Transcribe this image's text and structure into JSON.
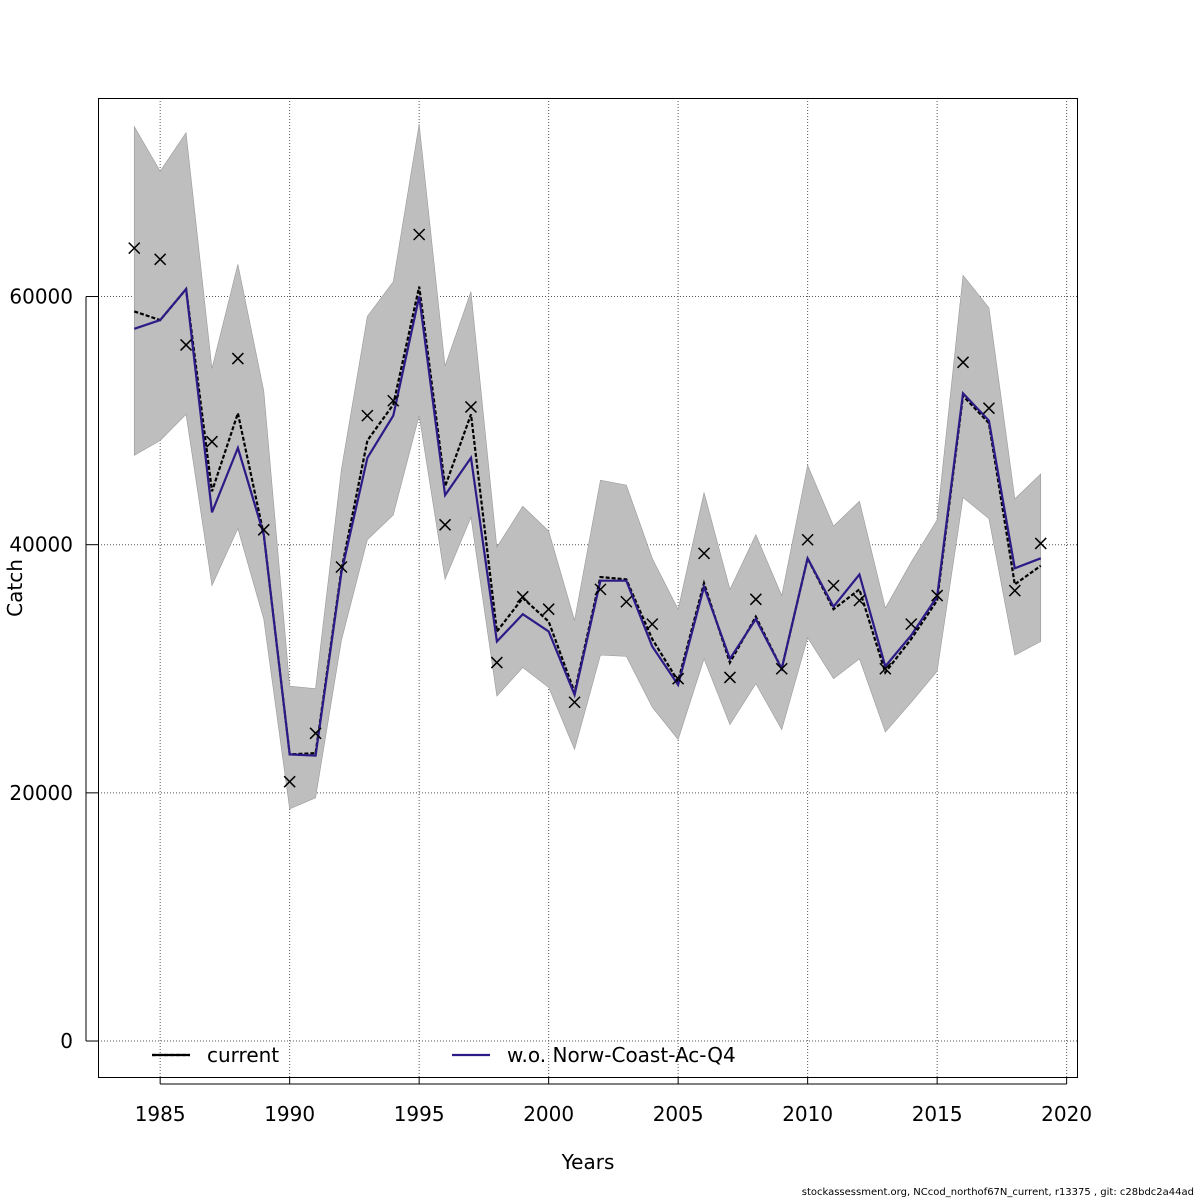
{
  "chart_data": {
    "type": "line",
    "xlabel": "Years",
    "ylabel": "Catch",
    "xlim": [
      1982.6,
      2020.4
    ],
    "ylim": [
      -2900,
      76000
    ],
    "x_ticks": [
      1985,
      1990,
      1995,
      2000,
      2005,
      2010,
      2015,
      2020
    ],
    "y_ticks": [
      0,
      20000,
      40000,
      60000
    ],
    "grid": true,
    "legend_position": "bottom",
    "x": [
      1984,
      1985,
      1986,
      1987,
      1988,
      1989,
      1990,
      1991,
      1992,
      1993,
      1994,
      1995,
      1996,
      1997,
      1998,
      1999,
      2000,
      2001,
      2002,
      2003,
      2004,
      2005,
      2006,
      2007,
      2008,
      2009,
      2010,
      2011,
      2012,
      2013,
      2014,
      2015,
      2016,
      2017,
      2018,
      2019
    ],
    "band": {
      "color": "#bebebe",
      "lower": [
        47200,
        48400,
        50500,
        36700,
        41300,
        34000,
        18700,
        19600,
        32300,
        40400,
        42400,
        50400,
        37200,
        42200,
        27800,
        30100,
        28500,
        23500,
        31100,
        31000,
        26900,
        24300,
        30800,
        25500,
        28800,
        25100,
        32500,
        29200,
        30800,
        24900,
        27300,
        29800,
        43800,
        42100,
        31100,
        32200
      ],
      "upper": [
        73700,
        70100,
        73200,
        54200,
        62600,
        52400,
        28600,
        28400,
        46100,
        58400,
        61200,
        73900,
        54400,
        60400,
        39800,
        43100,
        41100,
        33900,
        45200,
        44800,
        38900,
        34800,
        44200,
        36400,
        40800,
        35900,
        46400,
        41500,
        43500,
        34900,
        38600,
        42000,
        61700,
        59100,
        43700,
        45700
      ]
    },
    "series": [
      {
        "name": "current",
        "color": "#000000",
        "dashed": true,
        "values": [
          58800,
          58100,
          60600,
          44300,
          50600,
          40800,
          23100,
          23200,
          38000,
          48400,
          51300,
          60800,
          44700,
          50500,
          33000,
          35700,
          33800,
          28100,
          37400,
          37200,
          32400,
          29000,
          36900,
          30500,
          34200,
          30000,
          38900,
          34800,
          36400,
          29700,
          32400,
          35500,
          52000,
          49800,
          36800,
          38300
        ]
      },
      {
        "name": "w.o. Norw-Coast-Ac-Q4",
        "color": "#2e1a87",
        "dashed": false,
        "values": [
          57400,
          58100,
          60600,
          42600,
          47800,
          40800,
          23100,
          23000,
          37800,
          47000,
          50400,
          60000,
          44000,
          47000,
          32200,
          34400,
          33000,
          27900,
          37100,
          37100,
          31800,
          28700,
          36600,
          30800,
          34000,
          30000,
          38900,
          35000,
          37600,
          30200,
          32700,
          35800,
          52200,
          50000,
          38100,
          38900
        ]
      }
    ],
    "observations": {
      "marker": "x",
      "values": [
        63900,
        63000,
        56100,
        48300,
        55000,
        41200,
        20900,
        24800,
        38200,
        50400,
        51600,
        65000,
        41600,
        51100,
        30500,
        35800,
        34800,
        27300,
        36400,
        35400,
        33600,
        29200,
        39300,
        29300,
        35600,
        30000,
        40400,
        36700,
        35500,
        30000,
        33600,
        35900,
        54700,
        51000,
        36300,
        40100
      ]
    }
  },
  "footer_text": "stockassessment.org, NCcod_northof67N_current, r13375 , git: c28bdc2a44ad"
}
